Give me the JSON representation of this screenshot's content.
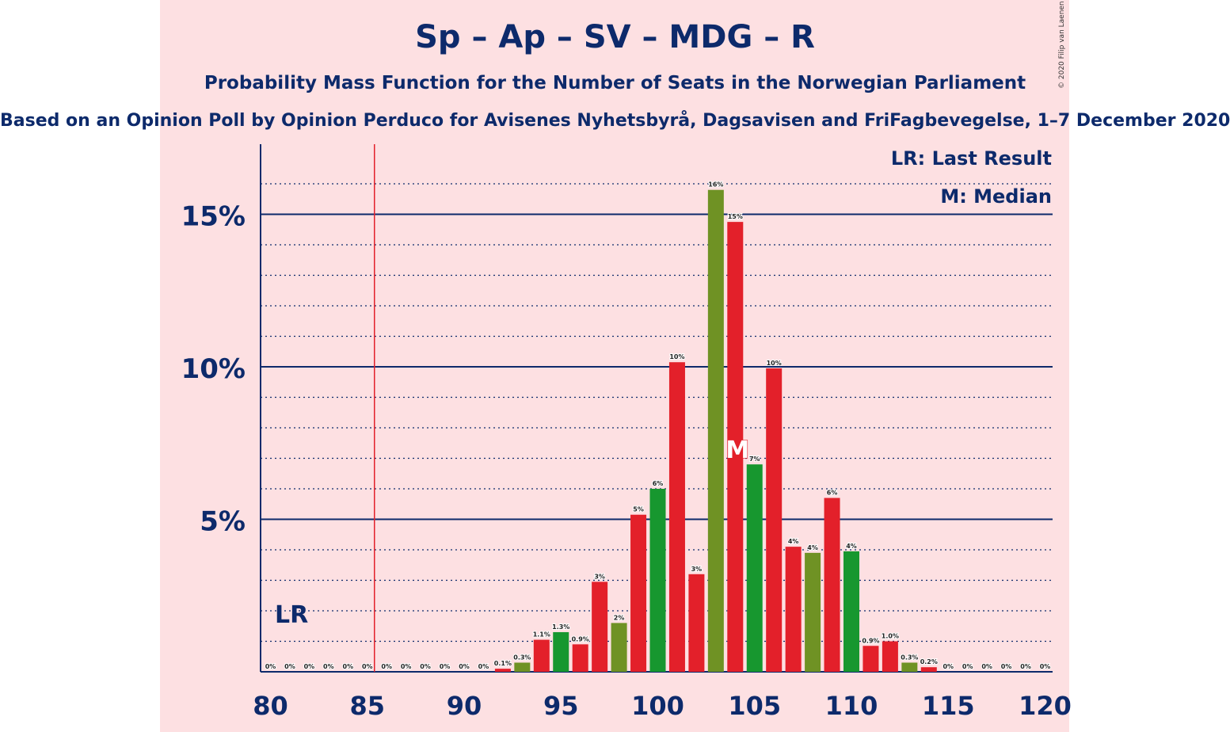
{
  "title": "Sp – Ap – SV – MDG – R",
  "subtitle": "Probability Mass Function for the Number of Seats in the Norwegian Parliament",
  "subtitle2": "Based on an Opinion Poll by Opinion Perduco for Avisenes Nyhetsbyrå, Dagsavisen and FriFagbevegelse, 1–7 December 2020",
  "copyright": "© 2020 Filip van Laenen",
  "legend": {
    "last_result": "LR: Last Result",
    "median": "M: Median"
  },
  "colors": {
    "red": "#e3202a",
    "green": "#17972f",
    "olive": "#6f9224",
    "navy": "#0d2a6b",
    "background": "#fde0e2",
    "last_result_line": "#e3202a"
  },
  "chart_data": {
    "type": "bar",
    "x": [
      80,
      81,
      82,
      83,
      84,
      85,
      86,
      87,
      88,
      89,
      90,
      91,
      92,
      93,
      94,
      95,
      96,
      97,
      98,
      99,
      100,
      101,
      102,
      103,
      104,
      105,
      106,
      107,
      108,
      109,
      110,
      111,
      112,
      113,
      114,
      115,
      116,
      117,
      118,
      119,
      120
    ],
    "values": [
      0,
      0,
      0,
      0,
      0,
      0,
      0,
      0,
      0,
      0,
      0,
      0,
      0.1,
      0.3,
      1.05,
      1.3,
      0.9,
      2.95,
      1.6,
      5.15,
      6.0,
      10.15,
      3.2,
      15.8,
      14.75,
      6.8,
      9.95,
      4.1,
      3.9,
      5.7,
      3.95,
      0.85,
      1.0,
      0.3,
      0.15,
      0,
      0,
      0,
      0,
      0,
      0
    ],
    "labels": [
      "0%",
      "0%",
      "0%",
      "0%",
      "0%",
      "0%",
      "0%",
      "0%",
      "0%",
      "0%",
      "0%",
      "0%",
      "0.1%",
      "0.3%",
      "1.1%",
      "1.3%",
      "0.9%",
      "3%",
      "2%",
      "5%",
      "6%",
      "10%",
      "3%",
      "16%",
      "15%",
      "7%",
      "10%",
      "4%",
      "4%",
      "6%",
      "4%",
      "0.9%",
      "1.0%",
      "0.3%",
      "0.2%",
      "0%",
      "0%",
      "0%",
      "0%",
      "0%",
      "0%"
    ],
    "bar_colors": [
      "red",
      "red",
      "red",
      "red",
      "red",
      "red",
      "red",
      "red",
      "red",
      "red",
      "red",
      "red",
      "red",
      "olive",
      "red",
      "green",
      "red",
      "red",
      "olive",
      "red",
      "green",
      "red",
      "red",
      "olive",
      "red",
      "green",
      "red",
      "red",
      "olive",
      "red",
      "green",
      "red",
      "red",
      "olive",
      "red",
      "red",
      "red",
      "red",
      "red",
      "red",
      "red"
    ],
    "xlim": [
      80,
      120
    ],
    "ylim": [
      0,
      17
    ],
    "x_ticks": [
      80,
      85,
      90,
      95,
      100,
      105,
      110,
      115,
      120
    ],
    "y_ticks": [
      {
        "value": 5,
        "label": "5%"
      },
      {
        "value": 10,
        "label": "10%"
      },
      {
        "value": 15,
        "label": "15%"
      }
    ],
    "minor_gridlines_step": 1,
    "last_result": {
      "seats": 85,
      "label": "LR"
    },
    "median": {
      "seats": 104,
      "label": "M"
    }
  }
}
